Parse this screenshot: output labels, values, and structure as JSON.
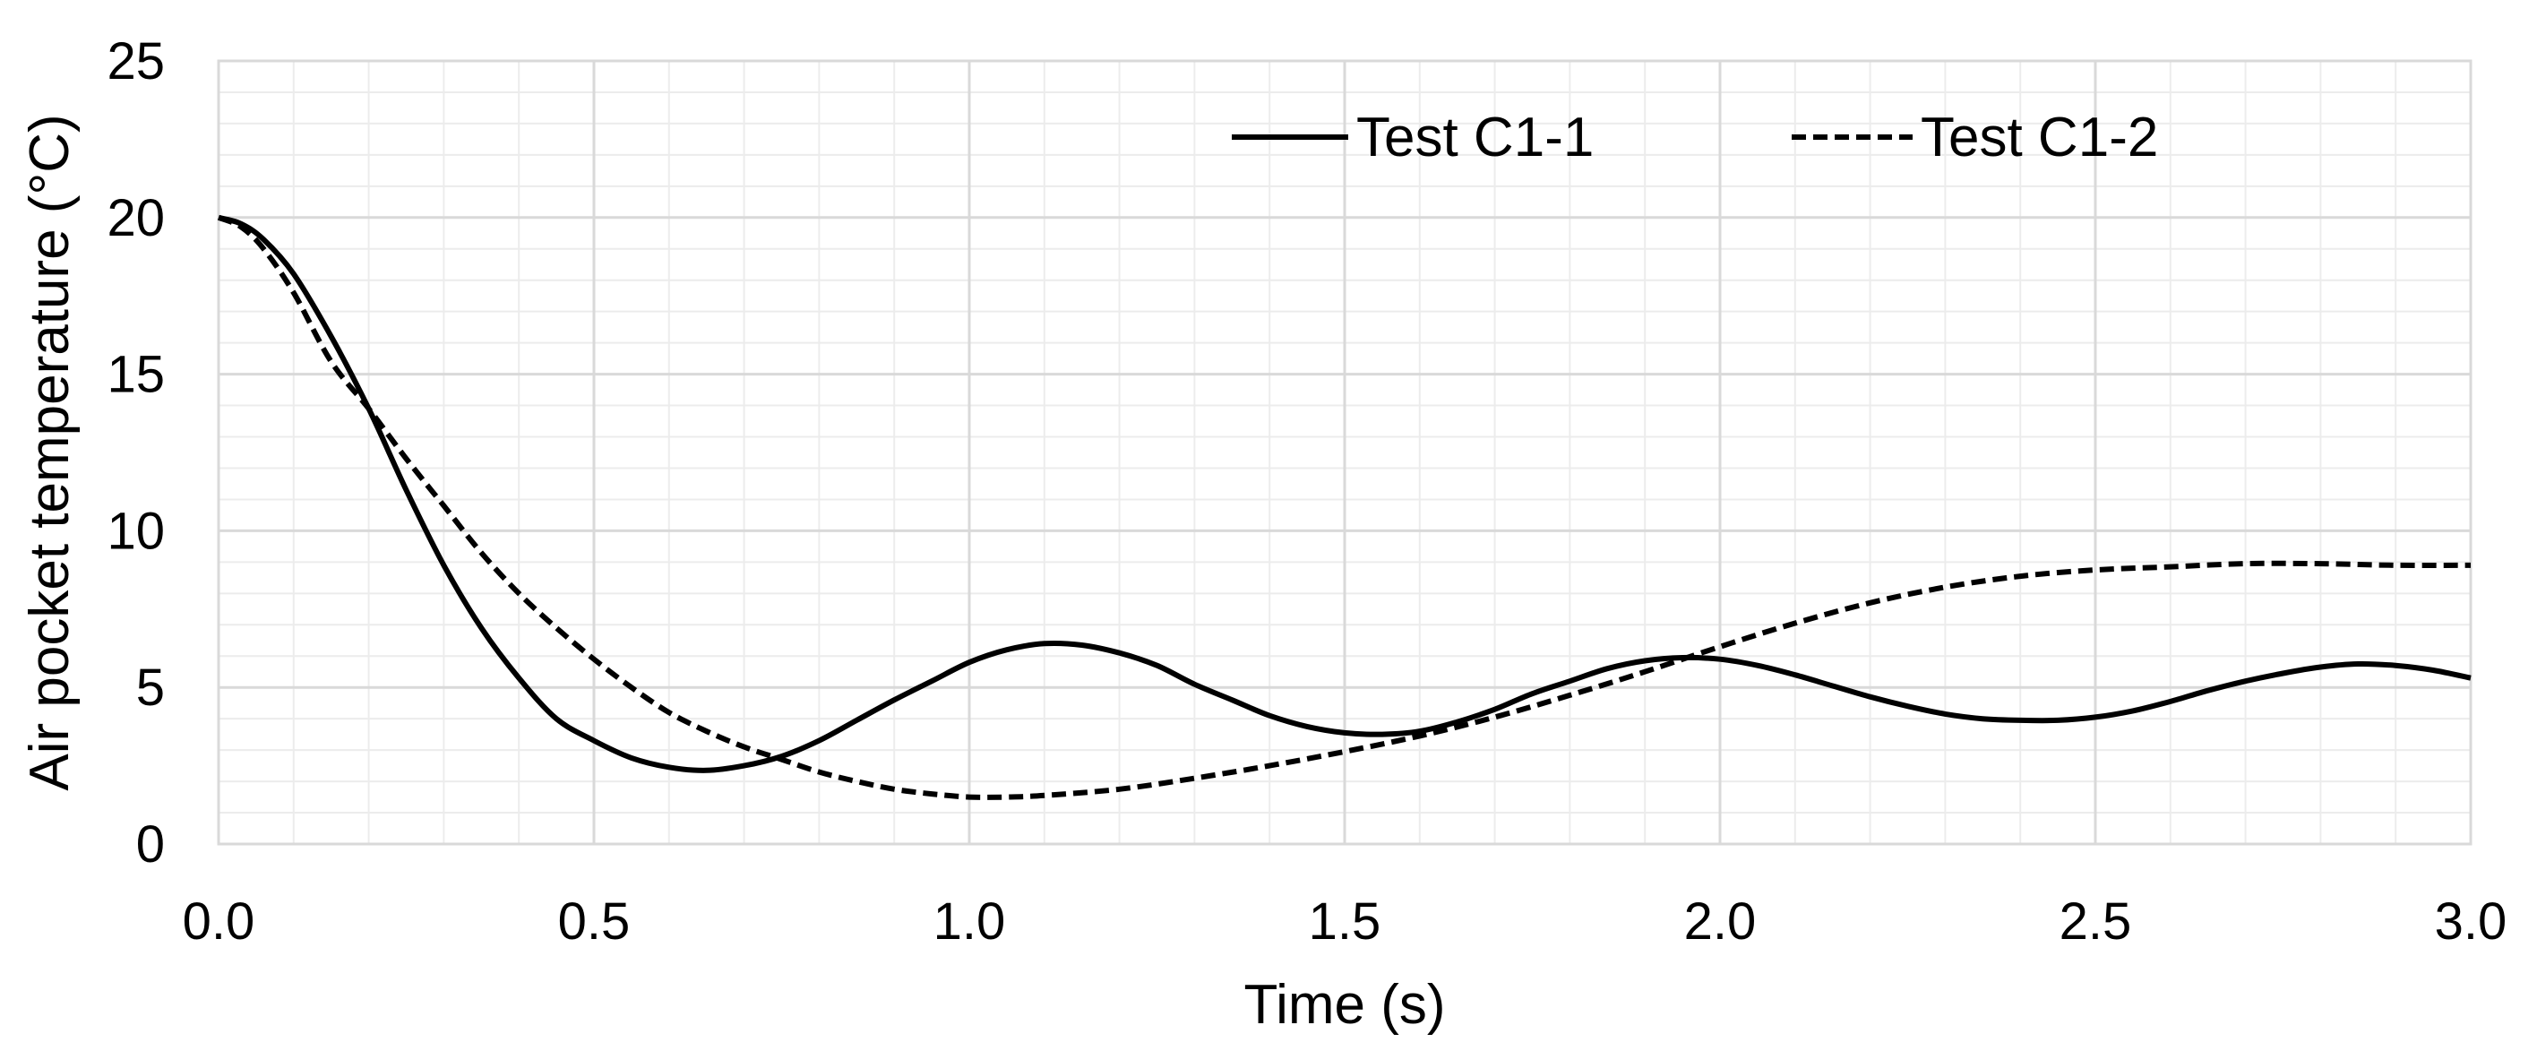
{
  "chart_data": {
    "type": "line",
    "title": "",
    "xlabel": "Time (s)",
    "ylabel": "Air pocket temperature (°C)",
    "xlim": [
      0,
      3
    ],
    "ylim": [
      0,
      25
    ],
    "x_major_ticks": [
      0,
      0.5,
      1,
      1.5,
      2,
      2.5,
      3
    ],
    "x_tick_labels": [
      "0.0",
      "0.5",
      "1.0",
      "1.5",
      "2.0",
      "2.5",
      "3.0"
    ],
    "y_major_ticks": [
      0,
      5,
      10,
      15,
      20,
      25
    ],
    "y_tick_labels": [
      "0",
      "5",
      "10",
      "15",
      "20",
      "25"
    ],
    "x_minor_step": 0.1,
    "y_minor_step": 1,
    "grid": true,
    "legend": "top-center",
    "series": [
      {
        "name": "Test C1-1",
        "style": "solid",
        "color": "#000000",
        "x": [
          0,
          0.03,
          0.06,
          0.1,
          0.15,
          0.2,
          0.25,
          0.3,
          0.35,
          0.4,
          0.45,
          0.5,
          0.55,
          0.6,
          0.65,
          0.7,
          0.75,
          0.8,
          0.85,
          0.9,
          0.95,
          1.0,
          1.05,
          1.1,
          1.15,
          1.2,
          1.25,
          1.3,
          1.35,
          1.4,
          1.45,
          1.5,
          1.55,
          1.6,
          1.65,
          1.7,
          1.75,
          1.8,
          1.85,
          1.9,
          1.95,
          2.0,
          2.05,
          2.1,
          2.15,
          2.2,
          2.25,
          2.3,
          2.35,
          2.4,
          2.45,
          2.5,
          2.55,
          2.6,
          2.65,
          2.7,
          2.75,
          2.8,
          2.85,
          2.9,
          2.95,
          3.0
        ],
        "values": [
          20,
          19.8,
          19.3,
          18.2,
          16.2,
          13.9,
          11.3,
          8.9,
          6.9,
          5.3,
          4.0,
          3.3,
          2.75,
          2.45,
          2.35,
          2.5,
          2.8,
          3.3,
          3.95,
          4.6,
          5.2,
          5.8,
          6.2,
          6.4,
          6.35,
          6.1,
          5.7,
          5.1,
          4.6,
          4.1,
          3.75,
          3.55,
          3.5,
          3.6,
          3.9,
          4.3,
          4.8,
          5.2,
          5.6,
          5.85,
          5.95,
          5.9,
          5.7,
          5.4,
          5.05,
          4.7,
          4.4,
          4.15,
          4.0,
          3.95,
          3.95,
          4.05,
          4.25,
          4.55,
          4.9,
          5.2,
          5.45,
          5.65,
          5.75,
          5.7,
          5.55,
          5.3
        ]
      },
      {
        "name": "Test C1-2",
        "style": "dashed",
        "color": "#000000",
        "x": [
          0,
          0.03,
          0.06,
          0.1,
          0.15,
          0.2,
          0.25,
          0.3,
          0.35,
          0.4,
          0.45,
          0.5,
          0.55,
          0.6,
          0.65,
          0.7,
          0.75,
          0.8,
          0.85,
          0.9,
          0.95,
          1.0,
          1.05,
          1.1,
          1.2,
          1.3,
          1.4,
          1.5,
          1.6,
          1.7,
          1.8,
          1.9,
          2.0,
          2.1,
          2.2,
          2.3,
          2.4,
          2.5,
          2.6,
          2.7,
          2.8,
          2.9,
          3.0
        ],
        "values": [
          20,
          19.7,
          19.0,
          17.6,
          15.4,
          13.9,
          12.3,
          10.8,
          9.3,
          8.0,
          6.9,
          5.9,
          5.0,
          4.2,
          3.6,
          3.1,
          2.7,
          2.3,
          2.0,
          1.75,
          1.6,
          1.5,
          1.5,
          1.55,
          1.75,
          2.1,
          2.5,
          2.95,
          3.45,
          4.05,
          4.75,
          5.5,
          6.3,
          7.05,
          7.7,
          8.2,
          8.55,
          8.75,
          8.85,
          8.95,
          8.95,
          8.9,
          8.9
        ]
      }
    ]
  }
}
